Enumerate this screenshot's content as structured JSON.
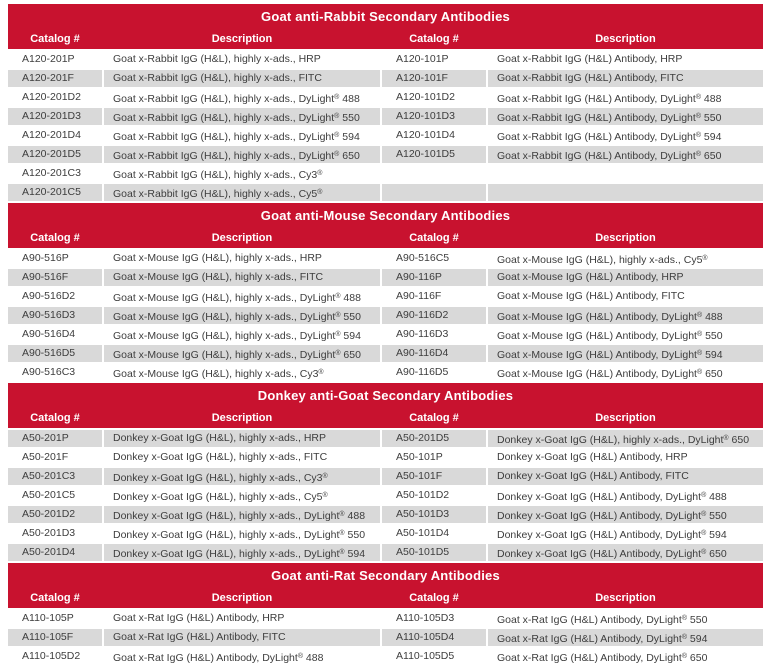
{
  "colors": {
    "header_red": "#C8122F",
    "stripe_gray": "#D9D9D9",
    "row_white": "#FFFFFF",
    "text_dark": "#3D3D3D",
    "header_text": "#FFFFFF"
  },
  "column_headers": [
    "Catalog #",
    "Description",
    "Catalog #",
    "Description"
  ],
  "sections": [
    {
      "title": "Goat anti-Rabbit Secondary Antibodies",
      "rows": [
        [
          "A120-201P",
          "Goat x-Rabbit IgG (H&L), highly x-ads., HRP",
          "A120-101P",
          "Goat x-Rabbit IgG (H&L) Antibody, HRP"
        ],
        [
          "A120-201F",
          "Goat x-Rabbit IgG (H&L), highly x-ads., FITC",
          "A120-101F",
          "Goat x-Rabbit IgG (H&L) Antibody, FITC"
        ],
        [
          "A120-201D2",
          "Goat x-Rabbit IgG (H&L), highly x-ads., DyLight® 488",
          "A120-101D2",
          "Goat x-Rabbit IgG (H&L) Antibody, DyLight® 488"
        ],
        [
          "A120-201D3",
          "Goat x-Rabbit IgG (H&L), highly x-ads., DyLight® 550",
          "A120-101D3",
          "Goat x-Rabbit IgG (H&L) Antibody, DyLight® 550"
        ],
        [
          "A120-201D4",
          "Goat x-Rabbit IgG (H&L), highly x-ads., DyLight® 594",
          "A120-101D4",
          "Goat x-Rabbit IgG (H&L) Antibody, DyLight® 594"
        ],
        [
          "A120-201D5",
          "Goat x-Rabbit IgG (H&L), highly x-ads., DyLight® 650",
          "A120-101D5",
          "Goat x-Rabbit IgG (H&L) Antibody, DyLight® 650"
        ],
        [
          "A120-201C3",
          "Goat x-Rabbit IgG (H&L), highly x-ads., Cy3®",
          "",
          ""
        ],
        [
          "A120-201C5",
          "Goat x-Rabbit IgG (H&L), highly x-ads., Cy5®",
          "",
          ""
        ]
      ]
    },
    {
      "title": "Goat anti-Mouse Secondary Antibodies",
      "rows": [
        [
          "A90-516P",
          "Goat x-Mouse IgG (H&L), highly x-ads., HRP",
          "A90-516C5",
          "Goat x-Mouse IgG (H&L), highly x-ads., Cy5®"
        ],
        [
          "A90-516F",
          "Goat x-Mouse IgG (H&L), highly x-ads., FITC",
          "A90-116P",
          "Goat x-Mouse IgG (H&L) Antibody, HRP"
        ],
        [
          "A90-516D2",
          "Goat x-Mouse IgG (H&L), highly x-ads., DyLight® 488",
          "A90-116F",
          "Goat x-Mouse IgG (H&L) Antibody, FITC"
        ],
        [
          "A90-516D3",
          "Goat x-Mouse IgG (H&L), highly x-ads., DyLight® 550",
          "A90-116D2",
          "Goat x-Mouse IgG (H&L) Antibody, DyLight® 488"
        ],
        [
          "A90-516D4",
          "Goat x-Mouse IgG (H&L), highly x-ads., DyLight® 594",
          "A90-116D3",
          "Goat x-Mouse IgG (H&L) Antibody, DyLight® 550"
        ],
        [
          "A90-516D5",
          "Goat x-Mouse IgG (H&L), highly x-ads., DyLight® 650",
          "A90-116D4",
          "Goat x-Mouse IgG (H&L) Antibody, DyLight® 594"
        ],
        [
          "A90-516C3",
          "Goat x-Mouse IgG (H&L), highly x-ads., Cy3®",
          "A90-116D5",
          "Goat x-Mouse IgG (H&L) Antibody, DyLight® 650"
        ]
      ]
    },
    {
      "title": "Donkey anti-Goat Secondary Antibodies",
      "rows": [
        [
          "A50-201P",
          "Donkey x-Goat IgG (H&L), highly x-ads., HRP",
          "A50-201D5",
          "Donkey x-Goat IgG (H&L), highly x-ads., DyLight® 650"
        ],
        [
          "A50-201F",
          "Donkey x-Goat IgG (H&L), highly x-ads., FITC",
          "A50-101P",
          "Donkey x-Goat IgG (H&L) Antibody, HRP"
        ],
        [
          "A50-201C3",
          "Donkey x-Goat IgG (H&L), highly x-ads., Cy3®",
          "A50-101F",
          "Donkey x-Goat IgG (H&L) Antibody, FITC"
        ],
        [
          "A50-201C5",
          "Donkey x-Goat IgG (H&L), highly x-ads., Cy5®",
          "A50-101D2",
          "Donkey x-Goat IgG (H&L) Antibody, DyLight® 488"
        ],
        [
          "A50-201D2",
          "Donkey x-Goat IgG (H&L), highly x-ads., DyLight® 488",
          "A50-101D3",
          "Donkey x-Goat IgG (H&L) Antibody, DyLight® 550"
        ],
        [
          "A50-201D3",
          "Donkey x-Goat IgG (H&L), highly x-ads., DyLight® 550",
          "A50-101D4",
          "Donkey x-Goat IgG (H&L) Antibody, DyLight® 594"
        ],
        [
          "A50-201D4",
          "Donkey x-Goat IgG (H&L), highly x-ads., DyLight® 594",
          "A50-101D5",
          "Donkey x-Goat IgG (H&L) Antibody, DyLight® 650"
        ]
      ]
    },
    {
      "title": "Goat anti-Rat Secondary Antibodies",
      "rows": [
        [
          "A110-105P",
          "Goat x-Rat IgG (H&L) Antibody, HRP",
          "A110-105D3",
          "Goat x-Rat IgG (H&L) Antibody, DyLight® 550"
        ],
        [
          "A110-105F",
          "Goat x-Rat IgG (H&L) Antibody, FITC",
          "A110-105D4",
          "Goat x-Rat IgG (H&L) Antibody, DyLight® 594"
        ],
        [
          "A110-105D2",
          "Goat x-Rat IgG (H&L) Antibody, DyLight® 488",
          "A110-105D5",
          "Goat x-Rat IgG (H&L) Antibody, DyLight® 650"
        ]
      ]
    }
  ]
}
